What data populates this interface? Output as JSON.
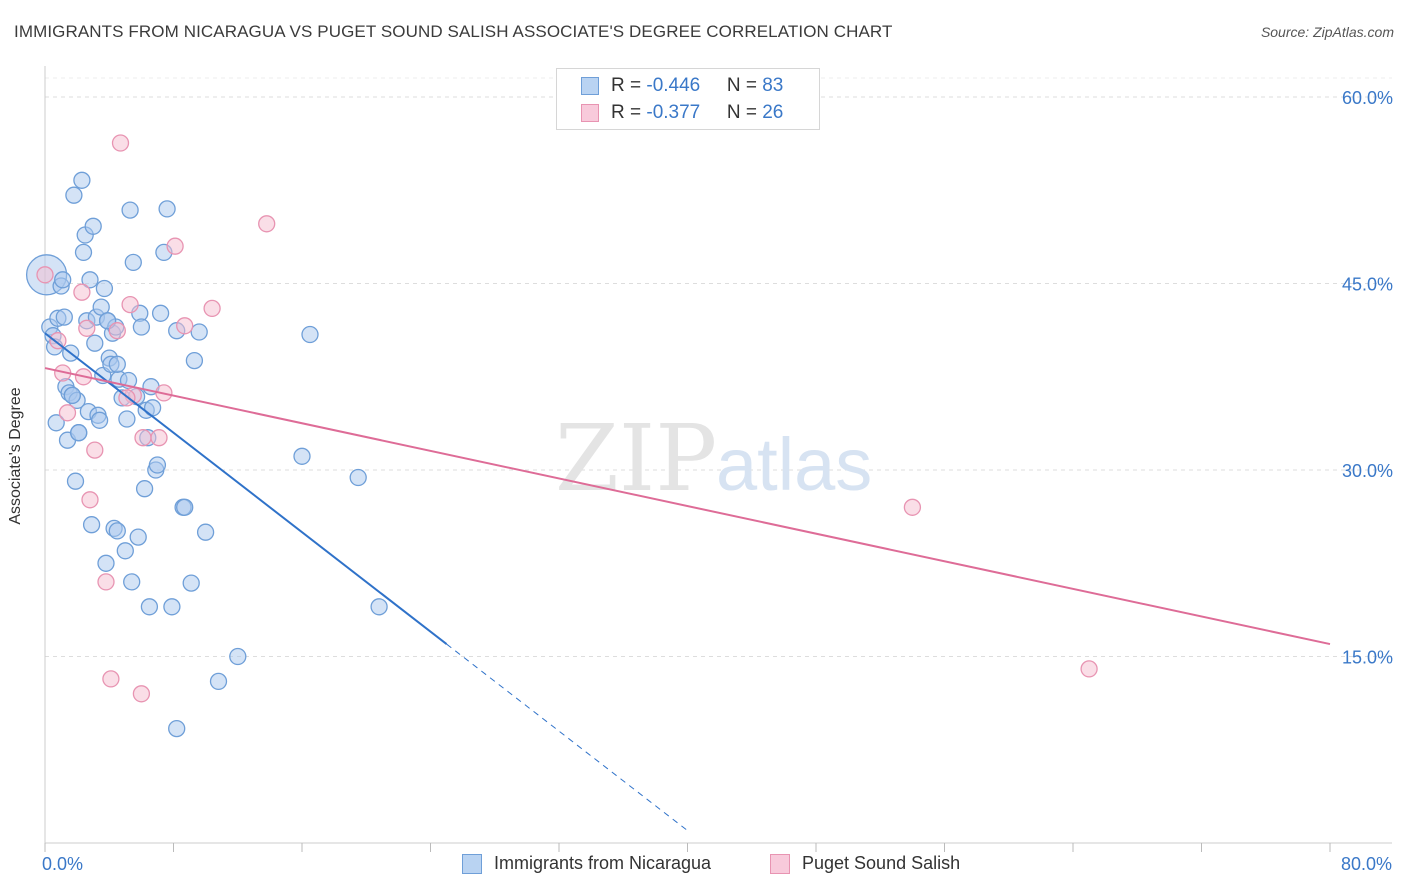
{
  "header": {
    "title": "IMMIGRANTS FROM NICARAGUA VS PUGET SOUND SALISH ASSOCIATE'S DEGREE CORRELATION CHART",
    "source": "Source: ZipAtlas.com"
  },
  "watermark": {
    "zip": "ZIP",
    "atlas": "atlas"
  },
  "legend_stats": [
    {
      "r_label": "R = ",
      "r_value": "-0.446",
      "n_label": "N = ",
      "n_value": "83"
    },
    {
      "r_label": "R = ",
      "r_value": "-0.377",
      "n_label": "N = ",
      "n_value": "26"
    }
  ],
  "colors": {
    "blue_fill": "#a9c8ee",
    "blue_stroke": "#6f9fd8",
    "blue_line": "#2f72c9",
    "pink_fill": "#f5bdd0",
    "pink_stroke": "#e894b2",
    "pink_line": "#de6c97",
    "axis_text": "#3a78c8",
    "grid": "#dddddd"
  },
  "chart_data": {
    "type": "scatter",
    "title": "IMMIGRANTS FROM NICARAGUA VS PUGET SOUND SALISH ASSOCIATE'S DEGREE CORRELATION CHART",
    "xlabel": "",
    "ylabel": "Associate's Degree",
    "xlim": [
      0,
      80
    ],
    "ylim": [
      0,
      60
    ],
    "x_tick_labels": [
      "0.0%",
      "80.0%"
    ],
    "y_ticks": [
      15,
      30,
      45,
      60
    ],
    "y_tick_labels": [
      "15.0%",
      "30.0%",
      "45.0%",
      "60.0%"
    ],
    "grid": true,
    "legend_placement": "bottom",
    "series": [
      {
        "name": "Immigrants from Nicaragua",
        "color": "#a9c8ee",
        "r": -0.446,
        "n": 83,
        "trend": {
          "x0": 0,
          "y0": 41,
          "x1": 25,
          "y1": 16,
          "dash_x1": 40,
          "dash_y1": 1
        },
        "points": [
          [
            0.1,
            45.7
          ],
          [
            0.3,
            41.5
          ],
          [
            0.5,
            40.8
          ],
          [
            0.6,
            39.9
          ],
          [
            0.8,
            42.2
          ],
          [
            0.7,
            33.8
          ],
          [
            1.0,
            44.8
          ],
          [
            1.1,
            45.3
          ],
          [
            1.2,
            42.3
          ],
          [
            1.3,
            36.7
          ],
          [
            1.4,
            32.4
          ],
          [
            1.5,
            36.2
          ],
          [
            1.6,
            39.4
          ],
          [
            1.7,
            36.0
          ],
          [
            1.8,
            52.1
          ],
          [
            1.9,
            29.1
          ],
          [
            2.0,
            35.6
          ],
          [
            2.1,
            33.0
          ],
          [
            2.3,
            53.3
          ],
          [
            2.4,
            47.5
          ],
          [
            2.5,
            48.9
          ],
          [
            2.6,
            42.0
          ],
          [
            2.7,
            34.7
          ],
          [
            2.8,
            45.3
          ],
          [
            2.9,
            25.6
          ],
          [
            3.0,
            49.6
          ],
          [
            3.1,
            40.2
          ],
          [
            3.2,
            42.3
          ],
          [
            3.3,
            34.4
          ],
          [
            3.4,
            34.0
          ],
          [
            3.5,
            43.1
          ],
          [
            3.6,
            37.6
          ],
          [
            3.7,
            44.6
          ],
          [
            3.8,
            22.5
          ],
          [
            3.9,
            42.0
          ],
          [
            4.0,
            39.0
          ],
          [
            4.1,
            38.5
          ],
          [
            4.2,
            41.0
          ],
          [
            4.3,
            25.3
          ],
          [
            4.4,
            41.5
          ],
          [
            4.5,
            25.1
          ],
          [
            4.6,
            37.3
          ],
          [
            4.8,
            35.8
          ],
          [
            5.0,
            23.5
          ],
          [
            5.1,
            34.1
          ],
          [
            5.2,
            37.2
          ],
          [
            5.3,
            50.9
          ],
          [
            5.4,
            21.0
          ],
          [
            5.5,
            46.7
          ],
          [
            5.7,
            35.9
          ],
          [
            5.8,
            24.6
          ],
          [
            5.9,
            42.6
          ],
          [
            6.0,
            41.5
          ],
          [
            6.2,
            28.5
          ],
          [
            6.3,
            34.8
          ],
          [
            6.4,
            32.6
          ],
          [
            6.5,
            19.0
          ],
          [
            6.6,
            36.7
          ],
          [
            6.7,
            35.0
          ],
          [
            6.9,
            30.0
          ],
          [
            7.0,
            30.4
          ],
          [
            7.2,
            42.6
          ],
          [
            7.4,
            47.5
          ],
          [
            7.6,
            51.0
          ],
          [
            7.9,
            19.0
          ],
          [
            8.2,
            41.2
          ],
          [
            8.6,
            27.0
          ],
          [
            8.7,
            27.0
          ],
          [
            9.1,
            20.9
          ],
          [
            9.3,
            38.8
          ],
          [
            9.6,
            41.1
          ],
          [
            10.0,
            25.0
          ],
          [
            10.8,
            13.0
          ],
          [
            12.0,
            15.0
          ],
          [
            16.5,
            40.9
          ],
          [
            16.0,
            31.1
          ],
          [
            19.5,
            29.4
          ],
          [
            20.8,
            19.0
          ],
          [
            8.2,
            9.2
          ],
          [
            1.7,
            36.0
          ],
          [
            2.1,
            33.0
          ],
          [
            4.5,
            38.5
          ],
          [
            3.9,
            42.0
          ]
        ]
      },
      {
        "name": "Puget Sound Salish",
        "color": "#f5bdd0",
        "r": -0.377,
        "n": 26,
        "trend": {
          "x0": 0,
          "y0": 38.2,
          "x1": 80,
          "y1": 16
        },
        "points": [
          [
            0.0,
            45.7
          ],
          [
            0.8,
            40.4
          ],
          [
            1.1,
            37.8
          ],
          [
            1.4,
            34.6
          ],
          [
            2.3,
            44.3
          ],
          [
            2.4,
            37.5
          ],
          [
            2.6,
            41.4
          ],
          [
            2.8,
            27.6
          ],
          [
            3.1,
            31.6
          ],
          [
            3.8,
            21.0
          ],
          [
            4.1,
            13.2
          ],
          [
            4.5,
            41.2
          ],
          [
            4.7,
            56.3
          ],
          [
            5.3,
            43.3
          ],
          [
            5.5,
            36.0
          ],
          [
            6.0,
            12.0
          ],
          [
            6.1,
            32.6
          ],
          [
            7.1,
            32.6
          ],
          [
            7.4,
            36.2
          ],
          [
            8.1,
            48.0
          ],
          [
            8.7,
            41.6
          ],
          [
            10.4,
            43.0
          ],
          [
            13.8,
            49.8
          ],
          [
            54.0,
            27.0
          ],
          [
            65.0,
            14.0
          ],
          [
            5.1,
            35.8
          ]
        ]
      }
    ]
  }
}
